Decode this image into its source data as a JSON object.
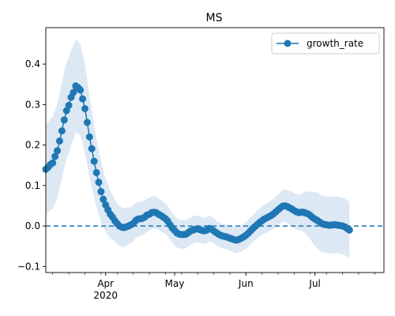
{
  "chart_data": {
    "type": "line",
    "title": "MS",
    "xlabel": "",
    "ylabel": "",
    "xlim": [
      "2020-03-06",
      "2020-07-31"
    ],
    "ylim": [
      -0.115,
      0.49
    ],
    "x_ticks": [
      {
        "date": "2020-04-01",
        "label": "Apr",
        "sublabel": "2020"
      },
      {
        "date": "2020-05-01",
        "label": "May",
        "sublabel": ""
      },
      {
        "date": "2020-06-01",
        "label": "Jun",
        "sublabel": ""
      },
      {
        "date": "2020-07-01",
        "label": "Jul",
        "sublabel": ""
      }
    ],
    "y_ticks": [
      -0.1,
      0.0,
      0.1,
      0.2,
      0.3,
      0.4
    ],
    "y_tick_labels": [
      "−0.1",
      "0.0",
      "0.1",
      "0.2",
      "0.3",
      "0.4"
    ],
    "reference_line": {
      "y": 0.0,
      "style": "dashed"
    },
    "legend": {
      "position": "top-right",
      "entries": [
        "growth_rate"
      ]
    },
    "grid": false,
    "colors": {
      "series": "#1f77b4",
      "band": "#dce8f4"
    },
    "series": [
      {
        "name": "growth_rate",
        "points": [
          [
            "2020-03-06",
            0.14
          ],
          [
            "2020-03-07",
            0.145
          ],
          [
            "2020-03-08",
            0.152
          ],
          [
            "2020-03-09",
            0.156
          ],
          [
            "2020-03-10",
            0.172
          ],
          [
            "2020-03-11",
            0.186
          ],
          [
            "2020-03-12",
            0.21
          ],
          [
            "2020-03-13",
            0.235
          ],
          [
            "2020-03-14",
            0.262
          ],
          [
            "2020-03-15",
            0.285
          ],
          [
            "2020-03-16",
            0.298
          ],
          [
            "2020-03-17",
            0.318
          ],
          [
            "2020-03-18",
            0.33
          ],
          [
            "2020-03-19",
            0.346
          ],
          [
            "2020-03-20",
            0.342
          ],
          [
            "2020-03-21",
            0.336
          ],
          [
            "2020-03-22",
            0.314
          ],
          [
            "2020-03-23",
            0.29
          ],
          [
            "2020-03-24",
            0.256
          ],
          [
            "2020-03-25",
            0.22
          ],
          [
            "2020-03-26",
            0.191
          ],
          [
            "2020-03-27",
            0.16
          ],
          [
            "2020-03-28",
            0.132
          ],
          [
            "2020-03-29",
            0.108
          ],
          [
            "2020-03-30",
            0.085
          ],
          [
            "2020-03-31",
            0.066
          ],
          [
            "2020-04-01",
            0.052
          ],
          [
            "2020-04-02",
            0.04
          ],
          [
            "2020-04-03",
            0.029
          ],
          [
            "2020-04-04",
            0.022
          ],
          [
            "2020-04-05",
            0.013
          ],
          [
            "2020-04-06",
            0.006
          ],
          [
            "2020-04-07",
            0.0
          ],
          [
            "2020-04-08",
            -0.003
          ],
          [
            "2020-04-09",
            -0.004
          ],
          [
            "2020-04-10",
            -0.002
          ],
          [
            "2020-04-11",
            0.0
          ],
          [
            "2020-04-12",
            0.003
          ],
          [
            "2020-04-13",
            0.006
          ],
          [
            "2020-04-14",
            0.013
          ],
          [
            "2020-04-15",
            0.017
          ],
          [
            "2020-04-16",
            0.018
          ],
          [
            "2020-04-17",
            0.019
          ],
          [
            "2020-04-18",
            0.022
          ],
          [
            "2020-04-19",
            0.027
          ],
          [
            "2020-04-20",
            0.029
          ],
          [
            "2020-04-21",
            0.033
          ],
          [
            "2020-04-22",
            0.034
          ],
          [
            "2020-04-23",
            0.033
          ],
          [
            "2020-04-24",
            0.029
          ],
          [
            "2020-04-25",
            0.026
          ],
          [
            "2020-04-26",
            0.022
          ],
          [
            "2020-04-27",
            0.018
          ],
          [
            "2020-04-28",
            0.012
          ],
          [
            "2020-04-29",
            0.003
          ],
          [
            "2020-04-30",
            -0.005
          ],
          [
            "2020-05-01",
            -0.011
          ],
          [
            "2020-05-02",
            -0.017
          ],
          [
            "2020-05-03",
            -0.02
          ],
          [
            "2020-05-04",
            -0.021
          ],
          [
            "2020-05-05",
            -0.021
          ],
          [
            "2020-05-06",
            -0.02
          ],
          [
            "2020-05-07",
            -0.016
          ],
          [
            "2020-05-08",
            -0.012
          ],
          [
            "2020-05-09",
            -0.01
          ],
          [
            "2020-05-10",
            -0.008
          ],
          [
            "2020-05-11",
            -0.007
          ],
          [
            "2020-05-12",
            -0.009
          ],
          [
            "2020-05-13",
            -0.011
          ],
          [
            "2020-05-14",
            -0.012
          ],
          [
            "2020-05-15",
            -0.01
          ],
          [
            "2020-05-16",
            -0.006
          ],
          [
            "2020-05-17",
            -0.008
          ],
          [
            "2020-05-18",
            -0.012
          ],
          [
            "2020-05-19",
            -0.016
          ],
          [
            "2020-05-20",
            -0.02
          ],
          [
            "2020-05-21",
            -0.023
          ],
          [
            "2020-05-22",
            -0.025
          ],
          [
            "2020-05-23",
            -0.026
          ],
          [
            "2020-05-24",
            -0.028
          ],
          [
            "2020-05-25",
            -0.03
          ],
          [
            "2020-05-26",
            -0.032
          ],
          [
            "2020-05-27",
            -0.034
          ],
          [
            "2020-05-28",
            -0.035
          ],
          [
            "2020-05-29",
            -0.033
          ],
          [
            "2020-05-30",
            -0.03
          ],
          [
            "2020-05-31",
            -0.027
          ],
          [
            "2020-06-01",
            -0.023
          ],
          [
            "2020-06-02",
            -0.018
          ],
          [
            "2020-06-03",
            -0.012
          ],
          [
            "2020-06-04",
            -0.006
          ],
          [
            "2020-06-05",
            -0.001
          ],
          [
            "2020-06-06",
            0.004
          ],
          [
            "2020-06-07",
            0.009
          ],
          [
            "2020-06-08",
            0.013
          ],
          [
            "2020-06-09",
            0.017
          ],
          [
            "2020-06-10",
            0.02
          ],
          [
            "2020-06-11",
            0.023
          ],
          [
            "2020-06-12",
            0.026
          ],
          [
            "2020-06-13",
            0.03
          ],
          [
            "2020-06-14",
            0.035
          ],
          [
            "2020-06-15",
            0.04
          ],
          [
            "2020-06-16",
            0.045
          ],
          [
            "2020-06-17",
            0.049
          ],
          [
            "2020-06-18",
            0.05
          ],
          [
            "2020-06-19",
            0.048
          ],
          [
            "2020-06-20",
            0.045
          ],
          [
            "2020-06-21",
            0.042
          ],
          [
            "2020-06-22",
            0.038
          ],
          [
            "2020-06-23",
            0.035
          ],
          [
            "2020-06-24",
            0.033
          ],
          [
            "2020-06-25",
            0.034
          ],
          [
            "2020-06-26",
            0.034
          ],
          [
            "2020-06-27",
            0.032
          ],
          [
            "2020-06-28",
            0.03
          ],
          [
            "2020-06-29",
            0.026
          ],
          [
            "2020-06-30",
            0.021
          ],
          [
            "2020-07-01",
            0.017
          ],
          [
            "2020-07-02",
            0.014
          ],
          [
            "2020-07-03",
            0.01
          ],
          [
            "2020-07-04",
            0.006
          ],
          [
            "2020-07-05",
            0.004
          ],
          [
            "2020-07-06",
            0.003
          ],
          [
            "2020-07-07",
            0.002
          ],
          [
            "2020-07-08",
            0.002
          ],
          [
            "2020-07-09",
            0.003
          ],
          [
            "2020-07-10",
            0.003
          ],
          [
            "2020-07-11",
            0.002
          ],
          [
            "2020-07-12",
            0.001
          ],
          [
            "2020-07-13",
            0.0
          ],
          [
            "2020-07-14",
            -0.002
          ],
          [
            "2020-07-15",
            -0.006
          ],
          [
            "2020-07-16",
            -0.01
          ]
        ],
        "band_half_width": [
          [
            0,
            0.11
          ],
          [
            8,
            0.12
          ],
          [
            13,
            0.115
          ],
          [
            17,
            0.11
          ],
          [
            21,
            0.09
          ],
          [
            26,
            0.065
          ],
          [
            31,
            0.05
          ],
          [
            41,
            0.042
          ],
          [
            56,
            0.036
          ],
          [
            76,
            0.03
          ],
          [
            91,
            0.034
          ],
          [
            101,
            0.038
          ],
          [
            111,
            0.045
          ],
          [
            118,
            0.07
          ]
        ]
      }
    ]
  }
}
